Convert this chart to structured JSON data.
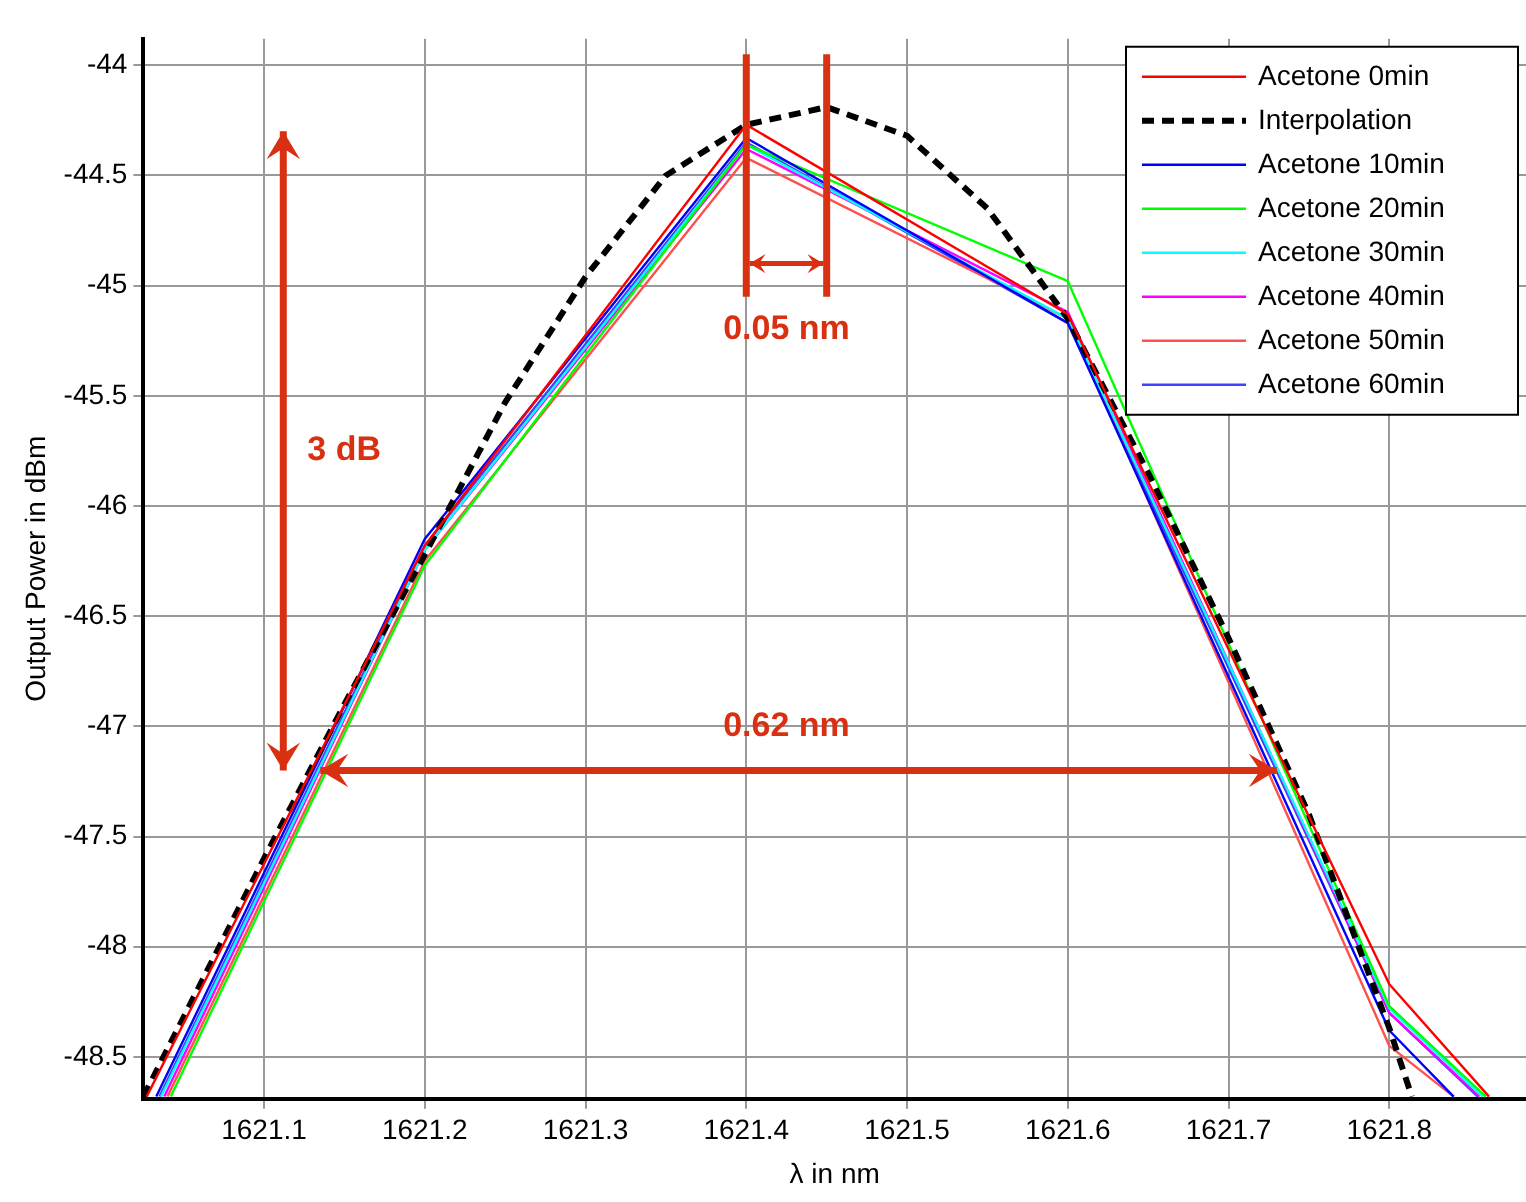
{
  "chart_data": {
    "type": "line",
    "xlabel": "λ in nm",
    "ylabel": "Output Power in dBm",
    "xlim": [
      1621.025,
      1621.885
    ],
    "xticks": [
      1621.1,
      1621.2,
      1621.3,
      1621.4,
      1621.5,
      1621.6,
      1621.7,
      1621.8
    ],
    "ylim": [
      -48.69,
      -43.88
    ],
    "yticks": [
      -44,
      -44.5,
      -45,
      -45.5,
      -46,
      -46.5,
      -47,
      -47.5,
      -48,
      -48.5
    ],
    "grid": true,
    "legend": "top right",
    "marker": "none",
    "series": [
      {
        "name": "Acetone 0min",
        "color": "#ff0000",
        "x": [
          1621.027,
          1621.2,
          1621.4,
          1621.6,
          1621.8,
          1621.862
        ],
        "values": [
          -48.68,
          -46.18,
          -44.27,
          -45.13,
          -48.17,
          -48.68
        ]
      },
      {
        "name": "Interpolation",
        "color": "#000000",
        "line_style": "dashed",
        "x": [
          1621.025,
          1621.1,
          1621.15,
          1621.2,
          1621.25,
          1621.3,
          1621.35,
          1621.4,
          1621.45,
          1621.5,
          1621.55,
          1621.6,
          1621.65,
          1621.7,
          1621.75,
          1621.8,
          1621.814
        ],
        "values": [
          -48.68,
          -47.6,
          -46.9,
          -46.22,
          -45.53,
          -44.96,
          -44.5,
          -44.27,
          -44.19,
          -44.32,
          -44.65,
          -45.15,
          -45.85,
          -46.6,
          -47.4,
          -48.37,
          -48.68
        ]
      },
      {
        "name": "Acetone 10min",
        "color": "#0000ff",
        "x": [
          1621.033,
          1621.2,
          1621.4,
          1621.6,
          1621.8,
          1621.84
        ],
        "values": [
          -48.68,
          -46.15,
          -44.33,
          -45.17,
          -48.38,
          -48.68
        ]
      },
      {
        "name": "Acetone 20min",
        "color": "#00ff00",
        "x": [
          1621.042,
          1621.2,
          1621.4,
          1621.6,
          1621.8,
          1621.86
        ],
        "values": [
          -48.68,
          -46.27,
          -44.36,
          -44.98,
          -48.27,
          -48.68
        ]
      },
      {
        "name": "Acetone 30min",
        "color": "#00ffff",
        "x": [
          1621.036,
          1621.2,
          1621.4,
          1621.6,
          1621.8,
          1621.858
        ],
        "values": [
          -48.68,
          -46.2,
          -44.36,
          -45.15,
          -48.28,
          -48.68
        ]
      },
      {
        "name": "Acetone 40min",
        "color": "#ff00ff",
        "x": [
          1621.038,
          1621.2,
          1621.4,
          1621.6,
          1621.8,
          1621.856
        ],
        "values": [
          -48.68,
          -46.2,
          -44.38,
          -45.12,
          -48.3,
          -48.68
        ]
      },
      {
        "name": "Acetone 50min",
        "color": "#ff5050",
        "x": [
          1621.04,
          1621.2,
          1621.4,
          1621.6,
          1621.8,
          1621.84
        ],
        "values": [
          -48.68,
          -46.25,
          -44.42,
          -45.15,
          -48.45,
          -48.68
        ]
      },
      {
        "name": "Acetone 60min",
        "color": "#4040ff",
        "x": [
          1621.035,
          1621.2,
          1621.4,
          1621.6,
          1621.8,
          1621.855
        ],
        "values": [
          -48.68,
          -46.18,
          -44.35,
          -45.17,
          -48.3,
          -48.68
        ]
      }
    ],
    "annotations": [
      "3 dB",
      "0.05 nm",
      "0.62 nm"
    ]
  }
}
